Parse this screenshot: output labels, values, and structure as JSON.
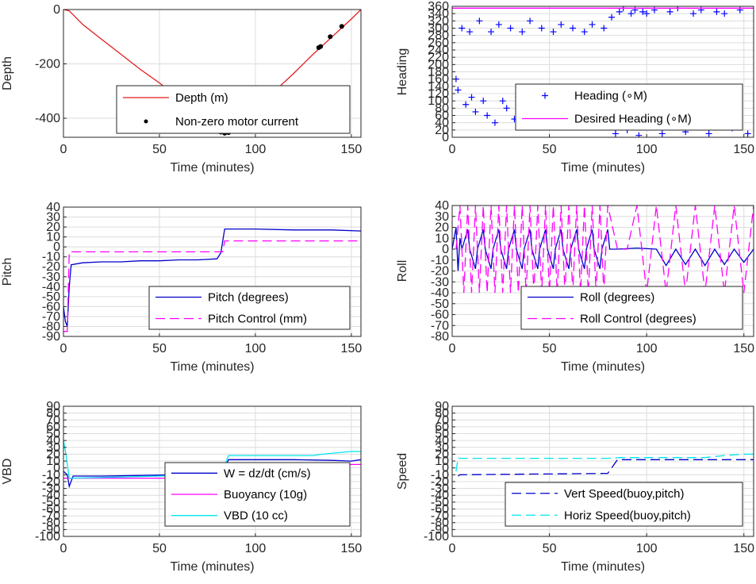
{
  "chart_data": [
    {
      "id": "depth",
      "type": "line",
      "xlabel": "Time (minutes)",
      "ylabel": "Depth",
      "xlim": [
        0,
        155
      ],
      "ylim": [
        -470,
        0
      ],
      "xticks": [
        0,
        50,
        100,
        150
      ],
      "yticks": [
        0,
        -200,
        -400
      ],
      "grid": true,
      "legend": "lower-center",
      "series": [
        {
          "name": "Depth (m)",
          "style": "solid",
          "color": "#e41a1c",
          "x": [
            0,
            3,
            10,
            20,
            30,
            40,
            50,
            60,
            70,
            78,
            82,
            84,
            86,
            88,
            90,
            100,
            110,
            120,
            130,
            140,
            150,
            155
          ],
          "y": [
            0,
            -5,
            -55,
            -110,
            -165,
            -220,
            -270,
            -325,
            -380,
            -425,
            -447,
            -450,
            -448,
            -440,
            -430,
            -365,
            -300,
            -235,
            -165,
            -100,
            -35,
            0
          ]
        },
        {
          "name": "Non-zero motor current",
          "style": "marker",
          "color": "#000000",
          "x": [
            80,
            82,
            84,
            86,
            88,
            133,
            134,
            139,
            145
          ],
          "y": [
            -447,
            -451,
            -455,
            -453,
            -446,
            -140,
            -136,
            -100,
            -62
          ]
        }
      ]
    },
    {
      "id": "heading",
      "type": "scatter",
      "xlabel": "Time (minutes)",
      "ylabel": "Heading",
      "xlim": [
        0,
        155
      ],
      "ylim": [
        0,
        360
      ],
      "xticks": [
        0,
        50,
        100,
        150
      ],
      "yticks": [
        0,
        20,
        40,
        60,
        80,
        100,
        120,
        140,
        160,
        180,
        200,
        220,
        240,
        260,
        280,
        300,
        320,
        340,
        360
      ],
      "grid": true,
      "legend": "lower-right",
      "series": [
        {
          "name": "Heading (∘M)",
          "style": "plus",
          "color": "#0000ff",
          "x": [
            2,
            3,
            5,
            7,
            9,
            10,
            12,
            14,
            16,
            18,
            20,
            22,
            24,
            26,
            28,
            30,
            32,
            34,
            36,
            38,
            40,
            42,
            44,
            46,
            48,
            50,
            52,
            54,
            56,
            58,
            60,
            62,
            64,
            66,
            68,
            70,
            72,
            74,
            76,
            78,
            80,
            82,
            84,
            86,
            88,
            90,
            92,
            94,
            96,
            98,
            100,
            104,
            108,
            112,
            116,
            120,
            124,
            128,
            132,
            136,
            140,
            144,
            148,
            152
          ],
          "y": [
            160,
            130,
            300,
            90,
            290,
            110,
            70,
            320,
            100,
            60,
            290,
            40,
            310,
            100,
            80,
            300,
            50,
            110,
            290,
            70,
            320,
            40,
            100,
            300,
            110,
            60,
            290,
            30,
            310,
            120,
            80,
            300,
            50,
            100,
            290,
            70,
            310,
            110,
            40,
            300,
            60,
            330,
            10,
            345,
            355,
            20,
            340,
            350,
            5,
            345,
            340,
            350,
            10,
            345,
            355,
            15,
            340,
            350,
            10,
            345,
            340,
            25,
            350,
            10
          ]
        },
        {
          "name": "Desired Heading (∘M)",
          "style": "solid",
          "color": "#ff00ff",
          "x": [
            0,
            155
          ],
          "y": [
            355,
            355
          ]
        }
      ]
    },
    {
      "id": "pitch",
      "type": "line",
      "xlabel": "Time (minutes)",
      "ylabel": "Pitch",
      "xlim": [
        0,
        155
      ],
      "ylim": [
        -90,
        40
      ],
      "xticks": [
        0,
        50,
        100,
        150
      ],
      "yticks": [
        -90,
        -80,
        -70,
        -60,
        -50,
        -40,
        -30,
        -20,
        -10,
        0,
        10,
        20,
        30,
        40
      ],
      "grid": true,
      "legend": "lower-right",
      "series": [
        {
          "name": "Pitch (degrees)",
          "style": "solid",
          "color": "#0000cc",
          "x": [
            0,
            1,
            2,
            3,
            4,
            10,
            20,
            30,
            40,
            50,
            60,
            70,
            80,
            82,
            84,
            86,
            100,
            120,
            140,
            155
          ],
          "y": [
            -60,
            -75,
            -80,
            -40,
            -18,
            -16,
            -15,
            -15,
            -14,
            -14,
            -13,
            -13,
            -12,
            -6,
            18,
            18,
            18,
            17,
            17,
            16
          ]
        },
        {
          "name": "Pitch Control (mm)",
          "style": "dashed",
          "color": "#ff00ff",
          "x": [
            0,
            2,
            3,
            4,
            83,
            84,
            85,
            155
          ],
          "y": [
            -85,
            -85,
            -5,
            -5,
            -5,
            6,
            6,
            6
          ]
        }
      ]
    },
    {
      "id": "roll",
      "type": "line",
      "xlabel": "Time (minutes)",
      "ylabel": "Roll",
      "xlim": [
        0,
        155
      ],
      "ylim": [
        -80,
        40
      ],
      "xticks": [
        0,
        50,
        100,
        150
      ],
      "yticks": [
        -80,
        -70,
        -60,
        -50,
        -40,
        -30,
        -20,
        -10,
        0,
        10,
        20,
        30,
        40
      ],
      "grid": true,
      "legend": "lower-right",
      "series": [
        {
          "name": "Roll (degrees)",
          "style": "solid",
          "color": "#0000cc",
          "x": [
            0,
            2,
            3,
            4,
            5,
            8,
            9,
            12,
            13,
            16,
            17,
            20,
            21,
            24,
            25,
            28,
            29,
            32,
            33,
            36,
            37,
            40,
            41,
            44,
            45,
            48,
            49,
            52,
            53,
            56,
            57,
            60,
            61,
            64,
            65,
            68,
            69,
            72,
            73,
            76,
            77,
            80,
            81,
            85,
            95,
            105,
            110,
            115,
            120,
            125,
            130,
            135,
            140,
            145,
            150,
            155
          ],
          "y": [
            0,
            20,
            -20,
            10,
            0,
            18,
            0,
            -18,
            0,
            18,
            0,
            -18,
            0,
            18,
            0,
            -18,
            0,
            18,
            0,
            -18,
            0,
            18,
            0,
            -18,
            0,
            18,
            0,
            -18,
            0,
            18,
            0,
            -18,
            0,
            18,
            0,
            -18,
            0,
            18,
            0,
            -18,
            0,
            18,
            0,
            0,
            1,
            0,
            -15,
            0,
            -14,
            0,
            -15,
            0,
            -14,
            0,
            -12,
            0
          ]
        },
        {
          "name": "Roll Control (degrees)",
          "style": "dashed",
          "color": "#ff00ff",
          "x": [
            2,
            4,
            6,
            8,
            10,
            12,
            14,
            16,
            18,
            20,
            22,
            24,
            26,
            28,
            30,
            32,
            34,
            36,
            38,
            40,
            42,
            44,
            46,
            48,
            50,
            52,
            54,
            56,
            58,
            60,
            62,
            64,
            66,
            68,
            70,
            72,
            74,
            76,
            78,
            80,
            85,
            90,
            95,
            100,
            105,
            110,
            115,
            120,
            125,
            130,
            135,
            140,
            145,
            150,
            155
          ],
          "y": [
            0,
            40,
            -40,
            40,
            -40,
            40,
            -40,
            40,
            -40,
            40,
            -40,
            40,
            -40,
            40,
            -40,
            40,
            -40,
            40,
            -40,
            40,
            -40,
            40,
            -40,
            40,
            -40,
            40,
            -40,
            40,
            -40,
            40,
            -40,
            40,
            -40,
            40,
            -40,
            40,
            -40,
            40,
            -40,
            40,
            0,
            0,
            40,
            -40,
            40,
            -40,
            40,
            -40,
            40,
            -40,
            40,
            -40,
            40,
            -40,
            40
          ]
        }
      ]
    },
    {
      "id": "vbd",
      "type": "line",
      "xlabel": "Time (minutes)",
      "ylabel": "VBD",
      "xlim": [
        0,
        155
      ],
      "ylim": [
        -100,
        90
      ],
      "xticks": [
        0,
        50,
        100,
        150
      ],
      "yticks": [
        -100,
        -90,
        -80,
        -70,
        -60,
        -50,
        -40,
        -30,
        -20,
        -10,
        0,
        10,
        20,
        30,
        40,
        50,
        60,
        70,
        80,
        90
      ],
      "grid": true,
      "legend": "lower-center",
      "series": [
        {
          "name": "W = dz/dt (cm/s)",
          "style": "solid",
          "color": "#0000cc",
          "x": [
            0,
            2,
            3,
            5,
            20,
            40,
            60,
            80,
            83,
            86,
            100,
            120,
            140,
            150,
            155
          ],
          "y": [
            -5,
            -10,
            -27,
            -12,
            -12,
            -11,
            -10,
            -10,
            -6,
            12,
            12,
            12,
            11,
            10,
            12
          ]
        },
        {
          "name": "Buoyancy (10g)",
          "style": "solid",
          "color": "#ff00ff",
          "x": [
            0,
            3,
            5,
            80,
            82,
            84,
            155
          ],
          "y": [
            -15,
            -15,
            -15,
            -15,
            -8,
            5,
            5
          ]
        },
        {
          "name": "VBD (10 cc)",
          "style": "solid",
          "color": "#00e5ee",
          "x": [
            0,
            1,
            3,
            5,
            80,
            82,
            86,
            130,
            135,
            150,
            155
          ],
          "y": [
            40,
            25,
            -15,
            -15,
            -10,
            -10,
            18,
            18,
            20,
            24,
            24
          ]
        }
      ]
    },
    {
      "id": "speed",
      "type": "line",
      "xlabel": "Time (minutes)",
      "ylabel": "Speed",
      "xlim": [
        0,
        155
      ],
      "ylim": [
        -100,
        90
      ],
      "xticks": [
        0,
        50,
        100,
        150
      ],
      "yticks": [
        -100,
        -90,
        -80,
        -70,
        -60,
        -50,
        -40,
        -30,
        -20,
        -10,
        0,
        10,
        20,
        30,
        40,
        50,
        60,
        70,
        80,
        90
      ],
      "grid": true,
      "legend": "lower-right",
      "series": [
        {
          "name": "Vert Speed(buoy,pitch)",
          "style": "dashed",
          "color": "#0000cc",
          "x": [
            3,
            4,
            80,
            85,
            86,
            155
          ],
          "y": [
            -12,
            -10,
            -8,
            12,
            12,
            12
          ]
        },
        {
          "name": "Horiz Speed(buoy,pitch)",
          "style": "dashed",
          "color": "#00e5ee",
          "x": [
            2,
            3,
            4,
            80,
            86,
            130,
            140,
            150,
            155
          ],
          "y": [
            -5,
            15,
            14,
            14,
            15,
            15,
            18,
            20,
            20
          ]
        }
      ]
    }
  ]
}
